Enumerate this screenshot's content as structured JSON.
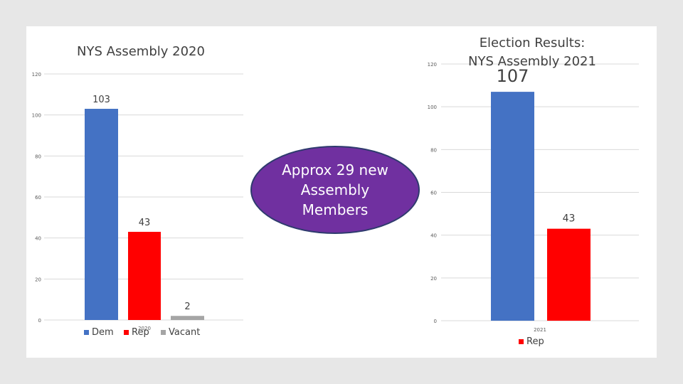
{
  "charts": [
    {
      "title": "NYS Assembly 2020",
      "category": "2020",
      "series": [
        {
          "name": "Dem",
          "value": 103,
          "label": "103",
          "color": "#4472C4"
        },
        {
          "name": "Rep",
          "value": 43,
          "label": "43",
          "color": "#FF0000"
        },
        {
          "name": "Vacant",
          "value": 2,
          "label": "2",
          "color": "#A5A5A5"
        }
      ],
      "ylim": [
        0,
        120
      ],
      "yticks": [
        "0",
        "20",
        "40",
        "60",
        "80",
        "100",
        "120"
      ]
    },
    {
      "title_line1": "Election Results:",
      "title_line2": "NYS Assembly 2021",
      "category": "2021",
      "series": [
        {
          "name": "",
          "value": 107,
          "label": "107",
          "color": "#4472C4"
        },
        {
          "name": "Rep",
          "value": 43,
          "label": "43",
          "color": "#FF0000"
        }
      ],
      "ylim": [
        0,
        120
      ],
      "yticks": [
        "0",
        "20",
        "40",
        "60",
        "80",
        "100",
        "120"
      ]
    }
  ],
  "callout": {
    "text": "Approx 29 new Assembly Members",
    "fill": "#7030A0",
    "stroke": "#2F3B6E"
  },
  "chart_data": [
    {
      "type": "bar",
      "title": "NYS Assembly 2020",
      "categories": [
        "2020"
      ],
      "series": [
        {
          "name": "Dem",
          "values": [
            103
          ]
        },
        {
          "name": "Rep",
          "values": [
            43
          ]
        },
        {
          "name": "Vacant",
          "values": [
            2
          ]
        }
      ],
      "ylim": [
        0,
        120
      ],
      "grid": true,
      "legend": "bottom"
    },
    {
      "type": "bar",
      "title": "Election Results: NYS Assembly 2021",
      "categories": [
        "2021"
      ],
      "series": [
        {
          "name": "",
          "values": [
            107
          ]
        },
        {
          "name": "Rep",
          "values": [
            43
          ]
        }
      ],
      "ylim": [
        0,
        120
      ],
      "grid": true,
      "legend": "bottom"
    }
  ]
}
